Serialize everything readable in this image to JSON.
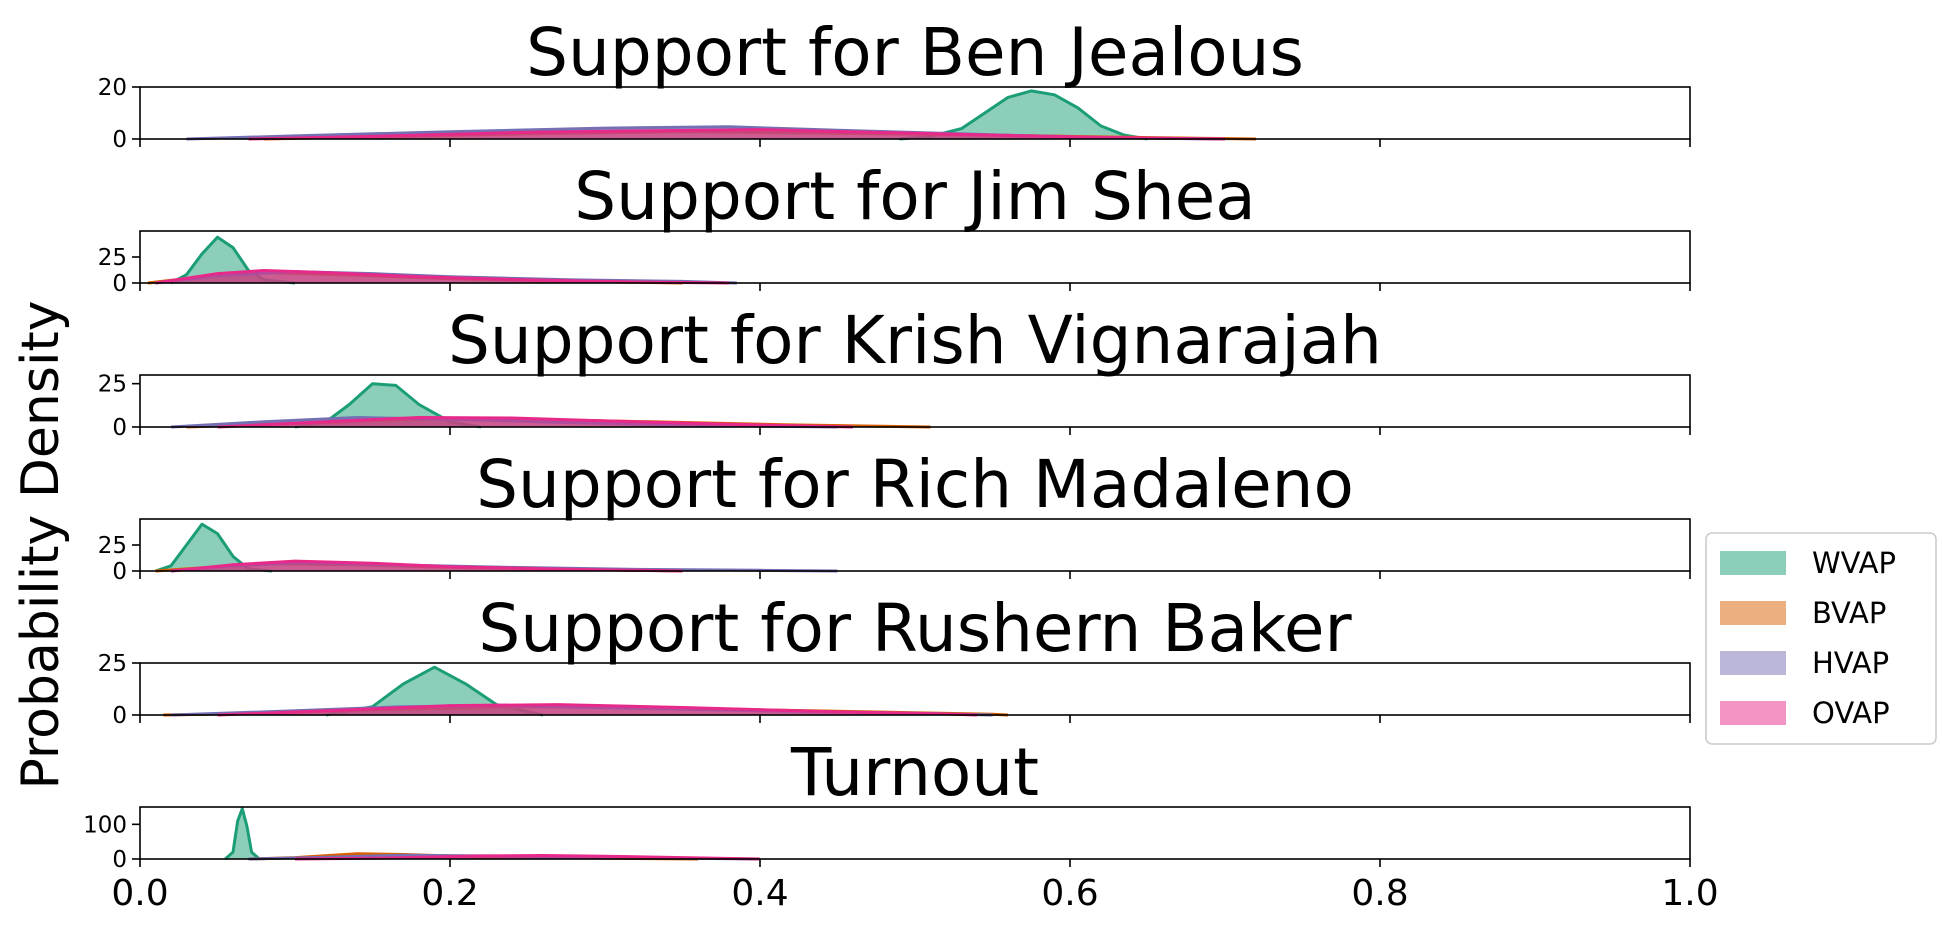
{
  "chart_data": {
    "type": "area",
    "ylabel": "Probability Density",
    "xlim": [
      0.0,
      1.0
    ],
    "x_ticks": [
      0.0,
      0.2,
      0.4,
      0.6,
      0.8,
      1.0
    ],
    "x_tick_labels": [
      "0.0",
      "0.2",
      "0.4",
      "0.6",
      "0.8",
      "1.0"
    ],
    "legend": {
      "placement": "center-right",
      "entries": [
        "WVAP",
        "BVAP",
        "HVAP",
        "OVAP"
      ]
    },
    "series_styles": [
      {
        "name": "WVAP",
        "color": "#1b9e77"
      },
      {
        "name": "BVAP",
        "color": "#d95f02"
      },
      {
        "name": "HVAP",
        "color": "#7570b3"
      },
      {
        "name": "OVAP",
        "color": "#e7298a"
      }
    ],
    "panels": [
      {
        "title": "Support for Ben Jealous",
        "ylim": [
          0,
          20
        ],
        "y_ticks": [
          0,
          20
        ],
        "y_tick_labels": [
          "0",
          "20"
        ],
        "series": [
          {
            "name": "WVAP",
            "values": [
              [
                0.49,
                0
              ],
              [
                0.51,
                1
              ],
              [
                0.53,
                4
              ],
              [
                0.545,
                10
              ],
              [
                0.56,
                16
              ],
              [
                0.575,
                18.5
              ],
              [
                0.59,
                17
              ],
              [
                0.605,
                12
              ],
              [
                0.62,
                5
              ],
              [
                0.635,
                1.5
              ],
              [
                0.65,
                0
              ]
            ]
          },
          {
            "name": "BVAP",
            "values": [
              [
                0.08,
                0
              ],
              [
                0.15,
                0.8
              ],
              [
                0.25,
                2
              ],
              [
                0.35,
                2.8
              ],
              [
                0.45,
                2.2
              ],
              [
                0.55,
                1.5
              ],
              [
                0.62,
                0.8
              ],
              [
                0.72,
                0
              ]
            ]
          },
          {
            "name": "HVAP",
            "values": [
              [
                0.03,
                0
              ],
              [
                0.1,
                1.2
              ],
              [
                0.2,
                2.8
              ],
              [
                0.3,
                4.2
              ],
              [
                0.38,
                4.7
              ],
              [
                0.45,
                3.4
              ],
              [
                0.55,
                1.6
              ],
              [
                0.62,
                0.5
              ],
              [
                0.7,
                0
              ]
            ]
          },
          {
            "name": "OVAP",
            "values": [
              [
                0.07,
                0
              ],
              [
                0.15,
                1
              ],
              [
                0.25,
                2.6
              ],
              [
                0.33,
                3.2
              ],
              [
                0.4,
                3.6
              ],
              [
                0.47,
                2.6
              ],
              [
                0.55,
                1.5
              ],
              [
                0.62,
                0.6
              ],
              [
                0.7,
                0
              ]
            ]
          }
        ]
      },
      {
        "title": "Support for Jim Shea",
        "ylim": [
          0,
          50
        ],
        "y_ticks": [
          0,
          25
        ],
        "y_tick_labels": [
          "0",
          "25"
        ],
        "series": [
          {
            "name": "WVAP",
            "values": [
              [
                0.02,
                0
              ],
              [
                0.03,
                8
              ],
              [
                0.04,
                28
              ],
              [
                0.05,
                44
              ],
              [
                0.06,
                34
              ],
              [
                0.07,
                12
              ],
              [
                0.08,
                3
              ],
              [
                0.1,
                0
              ]
            ]
          },
          {
            "name": "BVAP",
            "values": [
              [
                0.005,
                0
              ],
              [
                0.04,
                6
              ],
              [
                0.08,
                10
              ],
              [
                0.13,
                8
              ],
              [
                0.2,
                4
              ],
              [
                0.28,
                1.5
              ],
              [
                0.35,
                0
              ]
            ]
          },
          {
            "name": "HVAP",
            "values": [
              [
                0.01,
                0
              ],
              [
                0.05,
                7
              ],
              [
                0.1,
                11
              ],
              [
                0.15,
                9
              ],
              [
                0.2,
                6
              ],
              [
                0.28,
                3
              ],
              [
                0.35,
                1.5
              ],
              [
                0.385,
                0
              ]
            ]
          },
          {
            "name": "OVAP",
            "values": [
              [
                0.01,
                0
              ],
              [
                0.05,
                9
              ],
              [
                0.08,
                12
              ],
              [
                0.12,
                10
              ],
              [
                0.18,
                6
              ],
              [
                0.25,
                3
              ],
              [
                0.32,
                1
              ],
              [
                0.38,
                0
              ]
            ]
          }
        ]
      },
      {
        "title": "Support for Krish Vignarajah",
        "ylim": [
          0,
          30
        ],
        "y_ticks": [
          0,
          25
        ],
        "y_tick_labels": [
          "0",
          "25"
        ],
        "series": [
          {
            "name": "WVAP",
            "values": [
              [
                0.1,
                0
              ],
              [
                0.12,
                3
              ],
              [
                0.135,
                13
              ],
              [
                0.15,
                25
              ],
              [
                0.165,
                24
              ],
              [
                0.18,
                13
              ],
              [
                0.2,
                3
              ],
              [
                0.22,
                0
              ]
            ]
          },
          {
            "name": "BVAP",
            "values": [
              [
                0.03,
                0
              ],
              [
                0.1,
                2
              ],
              [
                0.18,
                4.5
              ],
              [
                0.25,
                4.5
              ],
              [
                0.33,
                3
              ],
              [
                0.42,
                1.2
              ],
              [
                0.51,
                0
              ]
            ]
          },
          {
            "name": "HVAP",
            "values": [
              [
                0.02,
                0
              ],
              [
                0.08,
                3
              ],
              [
                0.14,
                5.5
              ],
              [
                0.2,
                4.5
              ],
              [
                0.28,
                2.5
              ],
              [
                0.36,
                1
              ],
              [
                0.45,
                0
              ]
            ]
          },
          {
            "name": "OVAP",
            "values": [
              [
                0.05,
                0
              ],
              [
                0.12,
                3
              ],
              [
                0.18,
                5.5
              ],
              [
                0.24,
                5.2
              ],
              [
                0.3,
                3.5
              ],
              [
                0.38,
                1.6
              ],
              [
                0.46,
                0
              ]
            ]
          }
        ]
      },
      {
        "title": "Support for Rich Madaleno",
        "ylim": [
          0,
          50
        ],
        "y_ticks": [
          0,
          25
        ],
        "y_tick_labels": [
          "0",
          "25"
        ],
        "series": [
          {
            "name": "WVAP",
            "values": [
              [
                0.01,
                0
              ],
              [
                0.02,
                5
              ],
              [
                0.03,
                25
              ],
              [
                0.04,
                45
              ],
              [
                0.05,
                36
              ],
              [
                0.06,
                14
              ],
              [
                0.07,
                2
              ],
              [
                0.085,
                0
              ]
            ]
          },
          {
            "name": "BVAP",
            "values": [
              [
                0.01,
                0
              ],
              [
                0.05,
                4
              ],
              [
                0.09,
                7
              ],
              [
                0.14,
                6
              ],
              [
                0.2,
                3.5
              ],
              [
                0.28,
                1.5
              ],
              [
                0.35,
                0
              ]
            ]
          },
          {
            "name": "HVAP",
            "values": [
              [
                0.02,
                0
              ],
              [
                0.06,
                5
              ],
              [
                0.1,
                8
              ],
              [
                0.16,
                6
              ],
              [
                0.24,
                3.5
              ],
              [
                0.32,
                1.5
              ],
              [
                0.4,
                0.7
              ],
              [
                0.45,
                0
              ]
            ]
          },
          {
            "name": "OVAP",
            "values": [
              [
                0.02,
                0
              ],
              [
                0.06,
                6
              ],
              [
                0.1,
                9.5
              ],
              [
                0.15,
                7.5
              ],
              [
                0.2,
                4
              ],
              [
                0.28,
                1.5
              ],
              [
                0.35,
                0
              ]
            ]
          }
        ]
      },
      {
        "title": "Support for Rushern Baker",
        "ylim": [
          0,
          25
        ],
        "y_ticks": [
          0,
          25
        ],
        "y_tick_labels": [
          "0",
          "25"
        ],
        "series": [
          {
            "name": "WVAP",
            "values": [
              [
                0.12,
                0
              ],
              [
                0.15,
                4
              ],
              [
                0.17,
                15
              ],
              [
                0.19,
                23
              ],
              [
                0.21,
                15
              ],
              [
                0.23,
                5
              ],
              [
                0.26,
                0
              ]
            ]
          },
          {
            "name": "BVAP",
            "values": [
              [
                0.015,
                0
              ],
              [
                0.08,
                0.8
              ],
              [
                0.15,
                2.5
              ],
              [
                0.25,
                4
              ],
              [
                0.35,
                3.2
              ],
              [
                0.45,
                1.8
              ],
              [
                0.55,
                0.4
              ],
              [
                0.56,
                0
              ]
            ]
          },
          {
            "name": "HVAP",
            "values": [
              [
                0.02,
                0
              ],
              [
                0.1,
                2
              ],
              [
                0.17,
                4
              ],
              [
                0.23,
                4.5
              ],
              [
                0.3,
                3.5
              ],
              [
                0.4,
                2
              ],
              [
                0.5,
                0.8
              ],
              [
                0.55,
                0
              ]
            ]
          },
          {
            "name": "OVAP",
            "values": [
              [
                0.05,
                0
              ],
              [
                0.12,
                2
              ],
              [
                0.2,
                4.5
              ],
              [
                0.27,
                5
              ],
              [
                0.35,
                3.6
              ],
              [
                0.45,
                1.5
              ],
              [
                0.52,
                0.5
              ],
              [
                0.54,
                0
              ]
            ]
          }
        ]
      },
      {
        "title": "Turnout",
        "ylim": [
          0,
          150
        ],
        "y_ticks": [
          0,
          100
        ],
        "y_tick_labels": [
          "0",
          "100"
        ],
        "series": [
          {
            "name": "WVAP",
            "values": [
              [
                0.055,
                0
              ],
              [
                0.06,
                20
              ],
              [
                0.063,
                110
              ],
              [
                0.066,
                145
              ],
              [
                0.069,
                95
              ],
              [
                0.072,
                20
              ],
              [
                0.077,
                0
              ]
            ]
          },
          {
            "name": "BVAP",
            "values": [
              [
                0.07,
                0
              ],
              [
                0.1,
                4
              ],
              [
                0.14,
                15
              ],
              [
                0.17,
                13
              ],
              [
                0.22,
                6
              ],
              [
                0.28,
                3
              ],
              [
                0.36,
                0
              ]
            ]
          },
          {
            "name": "HVAP",
            "values": [
              [
                0.07,
                0
              ],
              [
                0.12,
                5
              ],
              [
                0.17,
                11
              ],
              [
                0.22,
                9
              ],
              [
                0.28,
                6
              ],
              [
                0.34,
                3
              ],
              [
                0.4,
                0
              ]
            ]
          },
          {
            "name": "OVAP",
            "values": [
              [
                0.1,
                0
              ],
              [
                0.16,
                3
              ],
              [
                0.22,
                9
              ],
              [
                0.26,
                10
              ],
              [
                0.3,
                8
              ],
              [
                0.35,
                4
              ],
              [
                0.39,
                1
              ],
              [
                0.4,
                0
              ]
            ]
          }
        ]
      }
    ]
  }
}
